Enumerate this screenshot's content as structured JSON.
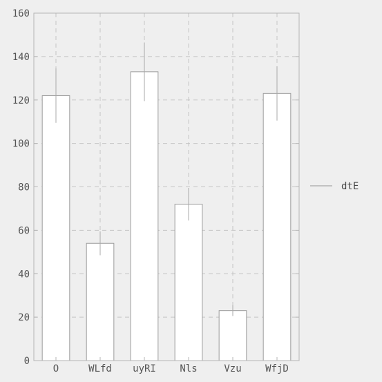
{
  "chart_data": {
    "type": "bar",
    "title": "",
    "xlabel": "",
    "ylabel": "",
    "categories": [
      "O",
      "WLfd",
      "uyRI",
      "Nls",
      "Vzu",
      "WfjD"
    ],
    "series": [
      {
        "name": "dtE",
        "values": [
          122,
          54,
          133,
          72,
          23,
          123
        ],
        "error": [
          12.5,
          5.5,
          13.5,
          7.5,
          2.5,
          12.5
        ]
      }
    ],
    "ylim": [
      0,
      160
    ],
    "yticks": [
      0,
      20,
      40,
      60,
      80,
      100,
      120,
      140,
      160
    ],
    "grid": true,
    "legend_position": "right",
    "colors": {
      "background": "#efefef",
      "plot_background": "#efefef",
      "bar_fill": "#ffffff",
      "bar_stroke": "#9a9a9a",
      "error_bar": "#a8a8a8",
      "grid": "#c4c4c4",
      "axis": "#b5b5b5",
      "legend_line": "#a8a8a8"
    }
  }
}
